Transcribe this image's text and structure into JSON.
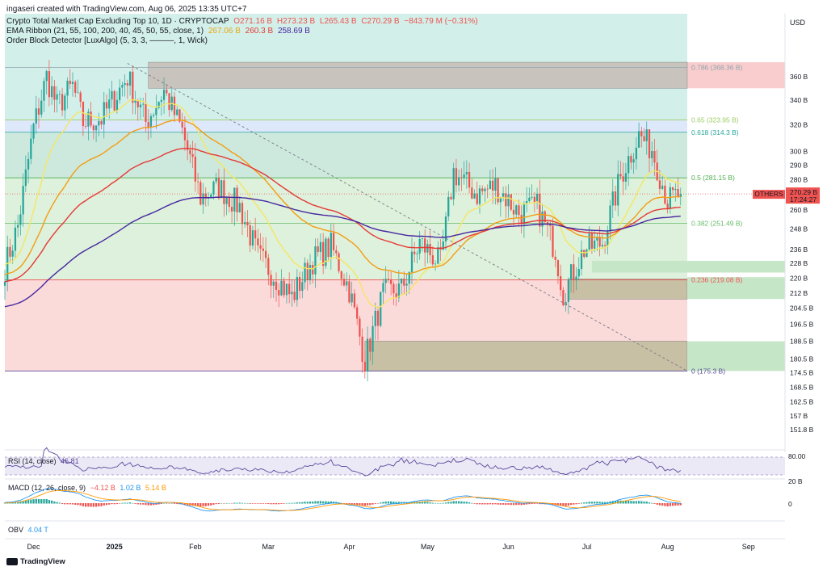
{
  "credit": "ingaseri created with TradingView.com, Aug 06, 2025 13:35 UTC+7",
  "legend": {
    "symbol": "Crypto Total Market Cap Excluding Top 10, 1D · CRYPTOCAP",
    "open": "O271.16 B",
    "high": "H273.23 B",
    "low": "L265.43 B",
    "close": "C270.29 B",
    "change": "−843.79 M (−0.31%)",
    "ema_label": "EMA Ribbon (21, 55, 100, 200, 40, 45, 50, 55, close, 1)",
    "ema_values": [
      "267.06 B",
      "260.3 B",
      "258.69 B"
    ],
    "ob_label": "Order Block Detector [LuxAlgo] (5, 3, 3, ———, 1, Wick)"
  },
  "currency": "USD",
  "price_tag": {
    "name": "OTHERS",
    "value": "270.29 B",
    "countdown": "17:24:27"
  },
  "colors": {
    "up": "#26a69a",
    "down": "#ef5350",
    "ema21": "#f5e663",
    "ema55": "#f39c12",
    "ema100": "#e53935",
    "ema200": "#4527a0",
    "rsi": "#5b4a9b",
    "macd": "#2196f3",
    "signal": "#ff9800"
  },
  "rsi": {
    "label": "RSI (14, close)",
    "value": "46.81",
    "level": "80.00"
  },
  "macd": {
    "label": "MACD (12, 26, close, 9)",
    "hist": "−4.12 B",
    "macd": "1.02 B",
    "signal": "5.14 B",
    "scale_top": "20 B",
    "scale_zero": "0"
  },
  "obv": {
    "label": "OBV",
    "value": "4.04 T"
  },
  "brand": "TradingView",
  "chart_data": {
    "type": "candlestick",
    "timeframe": "1D",
    "x_range": [
      "2024-11-20",
      "2025-09-15"
    ],
    "y_scale": "log",
    "y_range_billion": [
      148,
      420
    ],
    "y_ticks": [
      "360 B",
      "340 B",
      "320 B",
      "300 B",
      "290 B",
      "280 B",
      "260 B",
      "248 B",
      "236 B",
      "228 B",
      "220 B",
      "212 B",
      "204.5 B",
      "196.5 B",
      "188.5 B",
      "180.5 B",
      "174.5 B",
      "168.5 B",
      "162.5 B",
      "157 B",
      "151.8 B"
    ],
    "x_ticks": [
      "Dec",
      "2025",
      "Feb",
      "Mar",
      "Apr",
      "May",
      "Jun",
      "Jul",
      "Aug",
      "Sep"
    ],
    "fib_levels": [
      {
        "ratio": 0.786,
        "value_b": 368.36,
        "label": "0.786 (368.36 B)"
      },
      {
        "ratio": 0.65,
        "value_b": 323.95,
        "label": "0.65 (323.95 B)"
      },
      {
        "ratio": 0.618,
        "value_b": 314.3,
        "label": "0.618 (314.3 B)"
      },
      {
        "ratio": 0.5,
        "value_b": 281.15,
        "label": "0.5 (281.15 B)"
      },
      {
        "ratio": 0.382,
        "value_b": 251.49,
        "label": "0.382 (251.49 B)"
      },
      {
        "ratio": 0.236,
        "value_b": 219.08,
        "label": "0.236 (219.08 B)"
      },
      {
        "ratio": 0,
        "value_b": 175.3,
        "label": "0 (175.3 B)"
      }
    ],
    "close_anchors_b": [
      {
        "date": "2024-11-20",
        "close": 226
      },
      {
        "date": "2024-11-25",
        "close": 250
      },
      {
        "date": "2024-12-01",
        "close": 318
      },
      {
        "date": "2024-12-06",
        "close": 360
      },
      {
        "date": "2024-12-10",
        "close": 335
      },
      {
        "date": "2024-12-16",
        "close": 352
      },
      {
        "date": "2024-12-20",
        "close": 322
      },
      {
        "date": "2024-12-27",
        "close": 325
      },
      {
        "date": "2025-01-06",
        "close": 360
      },
      {
        "date": "2025-01-13",
        "close": 322
      },
      {
        "date": "2025-01-20",
        "close": 348
      },
      {
        "date": "2025-01-27",
        "close": 315
      },
      {
        "date": "2025-02-03",
        "close": 268
      },
      {
        "date": "2025-02-10",
        "close": 275
      },
      {
        "date": "2025-02-18",
        "close": 262
      },
      {
        "date": "2025-02-25",
        "close": 232
      },
      {
        "date": "2025-03-03",
        "close": 222
      },
      {
        "date": "2025-03-10",
        "close": 210
      },
      {
        "date": "2025-03-18",
        "close": 230
      },
      {
        "date": "2025-03-25",
        "close": 238
      },
      {
        "date": "2025-04-01",
        "close": 214
      },
      {
        "date": "2025-04-07",
        "close": 180
      },
      {
        "date": "2025-04-14",
        "close": 212
      },
      {
        "date": "2025-04-21",
        "close": 214
      },
      {
        "date": "2025-04-28",
        "close": 240
      },
      {
        "date": "2025-05-06",
        "close": 228
      },
      {
        "date": "2025-05-11",
        "close": 285
      },
      {
        "date": "2025-05-20",
        "close": 270
      },
      {
        "date": "2025-05-27",
        "close": 276
      },
      {
        "date": "2025-06-05",
        "close": 258
      },
      {
        "date": "2025-06-12",
        "close": 262
      },
      {
        "date": "2025-06-19",
        "close": 236
      },
      {
        "date": "2025-06-22",
        "close": 212
      },
      {
        "date": "2025-06-30",
        "close": 236
      },
      {
        "date": "2025-07-07",
        "close": 240
      },
      {
        "date": "2025-07-14",
        "close": 282
      },
      {
        "date": "2025-07-21",
        "close": 312
      },
      {
        "date": "2025-07-26",
        "close": 302
      },
      {
        "date": "2025-08-01",
        "close": 266
      },
      {
        "date": "2025-08-06",
        "close": 270.29
      }
    ]
  }
}
